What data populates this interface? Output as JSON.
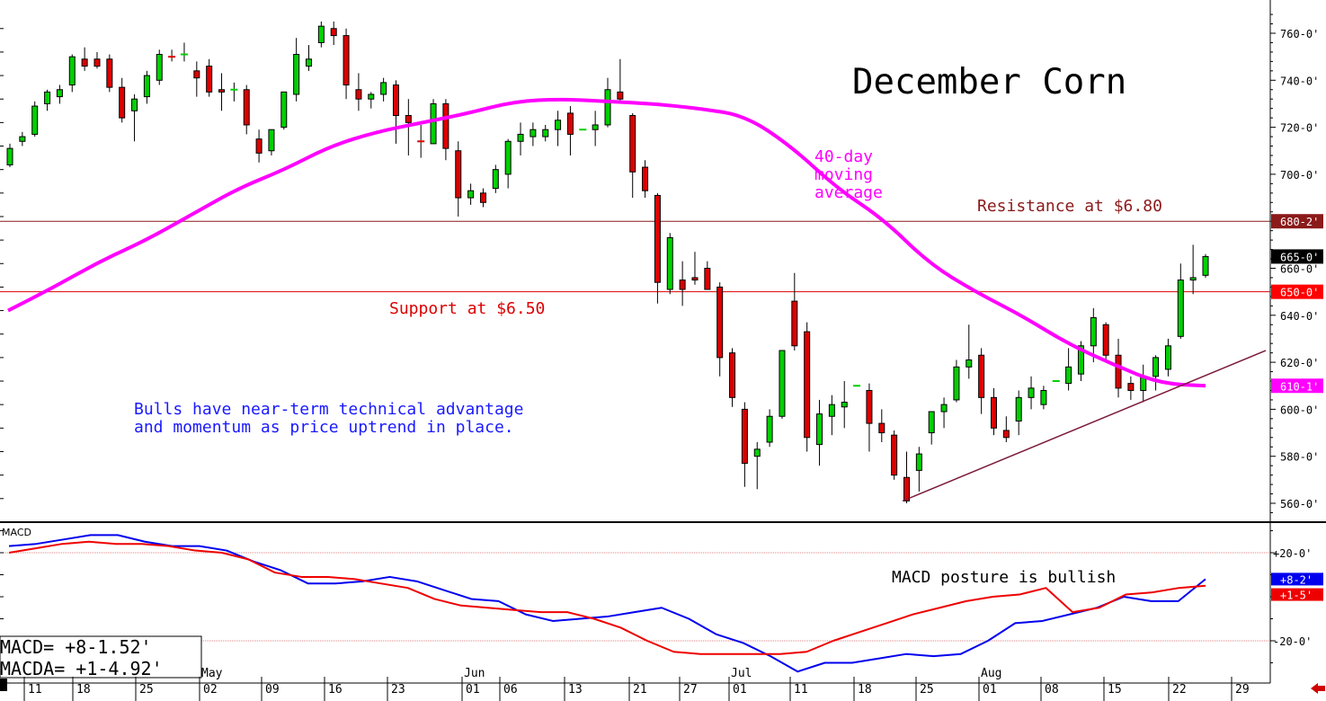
{
  "chart_data": [
    {
      "type": "candlestick",
      "title": "December Corn",
      "y_axis": {
        "range": [
          550,
          768
        ],
        "ticks": [
          "560-0'",
          "580-0'",
          "600-0'",
          "620-0'",
          "640-0'",
          "660-0'",
          "680-0'",
          "700-0'",
          "720-0'",
          "740-0'",
          "760-0'"
        ],
        "tick_values": [
          560,
          580,
          600,
          620,
          640,
          660,
          680,
          700,
          720,
          740,
          760
        ]
      },
      "x_axis": {
        "day_ticks": [
          "11",
          "18",
          "25",
          "02",
          "09",
          "16",
          "23",
          "01",
          "06",
          "13",
          "21",
          "27",
          "01",
          "11",
          "18",
          "25",
          "01",
          "08",
          "15",
          "22",
          "29"
        ],
        "months": [
          "May",
          "Jun",
          "Jul",
          "Aug"
        ]
      },
      "candles": [
        {
          "o": 704,
          "h": 713,
          "l": 703,
          "c": 711
        },
        {
          "o": 714,
          "h": 718,
          "l": 712,
          "c": 716
        },
        {
          "o": 717,
          "h": 731,
          "l": 716,
          "c": 729
        },
        {
          "o": 730,
          "h": 736,
          "l": 727,
          "c": 735
        },
        {
          "o": 733,
          "h": 738,
          "l": 730,
          "c": 736
        },
        {
          "o": 738,
          "h": 751,
          "l": 735,
          "c": 750
        },
        {
          "o": 749,
          "h": 754,
          "l": 744,
          "c": 746
        },
        {
          "o": 749,
          "h": 752,
          "l": 745,
          "c": 746
        },
        {
          "o": 749,
          "h": 751,
          "l": 735,
          "c": 737
        },
        {
          "o": 737,
          "h": 741,
          "l": 722,
          "c": 724
        },
        {
          "o": 727,
          "h": 734,
          "l": 714,
          "c": 732
        },
        {
          "o": 733,
          "h": 744,
          "l": 730,
          "c": 742
        },
        {
          "o": 740,
          "h": 753,
          "l": 738,
          "c": 751
        },
        {
          "o": 750,
          "h": 753,
          "l": 748,
          "c": 750
        },
        {
          "o": 751,
          "h": 756,
          "l": 748,
          "c": 751
        },
        {
          "o": 744,
          "h": 748,
          "l": 733,
          "c": 741
        },
        {
          "o": 746,
          "h": 749,
          "l": 733,
          "c": 735
        },
        {
          "o": 736,
          "h": 743,
          "l": 727,
          "c": 735
        },
        {
          "o": 736,
          "h": 739,
          "l": 731,
          "c": 736
        },
        {
          "o": 736,
          "h": 738,
          "l": 717,
          "c": 721
        },
        {
          "o": 715,
          "h": 719,
          "l": 705,
          "c": 709
        },
        {
          "o": 710,
          "h": 719,
          "l": 708,
          "c": 719
        },
        {
          "o": 720,
          "h": 735,
          "l": 719,
          "c": 735
        },
        {
          "o": 734,
          "h": 758,
          "l": 731,
          "c": 751
        },
        {
          "o": 746,
          "h": 755,
          "l": 744,
          "c": 749
        },
        {
          "o": 756,
          "h": 765,
          "l": 754,
          "c": 763
        },
        {
          "o": 762,
          "h": 765,
          "l": 755,
          "c": 759
        },
        {
          "o": 759,
          "h": 762,
          "l": 732,
          "c": 738
        },
        {
          "o": 736,
          "h": 743,
          "l": 727,
          "c": 732
        },
        {
          "o": 732,
          "h": 735,
          "l": 728,
          "c": 734
        },
        {
          "o": 734,
          "h": 741,
          "l": 731,
          "c": 739
        },
        {
          "o": 738,
          "h": 740,
          "l": 713,
          "c": 725
        },
        {
          "o": 725,
          "h": 732,
          "l": 708,
          "c": 722
        },
        {
          "o": 714,
          "h": 721,
          "l": 707,
          "c": 714
        },
        {
          "o": 713,
          "h": 732,
          "l": 713,
          "c": 730
        },
        {
          "o": 730,
          "h": 732,
          "l": 706,
          "c": 711
        },
        {
          "o": 710,
          "h": 714,
          "l": 682,
          "c": 690
        },
        {
          "o": 690,
          "h": 696,
          "l": 687,
          "c": 693
        },
        {
          "o": 692,
          "h": 694,
          "l": 686,
          "c": 688
        },
        {
          "o": 694,
          "h": 704,
          "l": 692,
          "c": 702
        },
        {
          "o": 700,
          "h": 715,
          "l": 694,
          "c": 714
        },
        {
          "o": 714,
          "h": 722,
          "l": 708,
          "c": 717
        },
        {
          "o": 716,
          "h": 722,
          "l": 712,
          "c": 719
        },
        {
          "o": 716,
          "h": 721,
          "l": 714,
          "c": 719
        },
        {
          "o": 719,
          "h": 727,
          "l": 712,
          "c": 723
        },
        {
          "o": 726,
          "h": 729,
          "l": 708,
          "c": 717
        },
        {
          "o": 719,
          "h": 719,
          "l": 719,
          "c": 719
        },
        {
          "o": 719,
          "h": 727,
          "l": 712,
          "c": 721
        },
        {
          "o": 721,
          "h": 741,
          "l": 720,
          "c": 736
        },
        {
          "o": 735,
          "h": 749,
          "l": 731,
          "c": 732
        },
        {
          "o": 725,
          "h": 726,
          "l": 690,
          "c": 701
        },
        {
          "o": 703,
          "h": 706,
          "l": 690,
          "c": 693
        },
        {
          "o": 691,
          "h": 692,
          "l": 645,
          "c": 654
        },
        {
          "o": 651,
          "h": 675,
          "l": 649,
          "c": 673
        },
        {
          "o": 655,
          "h": 663,
          "l": 644,
          "c": 651
        },
        {
          "o": 656,
          "h": 667,
          "l": 653,
          "c": 655
        },
        {
          "o": 660,
          "h": 663,
          "l": 651,
          "c": 651
        },
        {
          "o": 652,
          "h": 654,
          "l": 614,
          "c": 622
        },
        {
          "o": 624,
          "h": 626,
          "l": 601,
          "c": 605
        },
        {
          "o": 600,
          "h": 603,
          "l": 567,
          "c": 577
        },
        {
          "o": 580,
          "h": 586,
          "l": 566,
          "c": 583
        },
        {
          "o": 586,
          "h": 600,
          "l": 584,
          "c": 597
        },
        {
          "o": 597,
          "h": 625,
          "l": 596,
          "c": 625
        },
        {
          "o": 646,
          "h": 658,
          "l": 625,
          "c": 627
        },
        {
          "o": 633,
          "h": 637,
          "l": 582,
          "c": 588
        },
        {
          "o": 585,
          "h": 604,
          "l": 576,
          "c": 598
        },
        {
          "o": 597,
          "h": 606,
          "l": 589,
          "c": 602
        },
        {
          "o": 601,
          "h": 612,
          "l": 592,
          "c": 603
        },
        {
          "o": 610,
          "h": 610,
          "l": 610,
          "c": 610
        },
        {
          "o": 608,
          "h": 611,
          "l": 582,
          "c": 594
        },
        {
          "o": 594,
          "h": 600,
          "l": 586,
          "c": 590
        },
        {
          "o": 589,
          "h": 591,
          "l": 570,
          "c": 572
        },
        {
          "o": 571,
          "h": 582,
          "l": 560,
          "c": 561
        },
        {
          "o": 574,
          "h": 584,
          "l": 565,
          "c": 581
        },
        {
          "o": 590,
          "h": 599,
          "l": 585,
          "c": 599
        },
        {
          "o": 599,
          "h": 605,
          "l": 592,
          "c": 602
        },
        {
          "o": 604,
          "h": 621,
          "l": 603,
          "c": 618
        },
        {
          "o": 618,
          "h": 636,
          "l": 613,
          "c": 621
        },
        {
          "o": 623,
          "h": 626,
          "l": 598,
          "c": 605
        },
        {
          "o": 605,
          "h": 609,
          "l": 589,
          "c": 592
        },
        {
          "o": 591,
          "h": 597,
          "l": 586,
          "c": 588
        },
        {
          "o": 595,
          "h": 608,
          "l": 589,
          "c": 605
        },
        {
          "o": 605,
          "h": 614,
          "l": 600,
          "c": 609
        },
        {
          "o": 602,
          "h": 610,
          "l": 600,
          "c": 608
        },
        {
          "o": 612,
          "h": 612,
          "l": 612,
          "c": 612
        },
        {
          "o": 611,
          "h": 626,
          "l": 608,
          "c": 618
        },
        {
          "o": 615,
          "h": 629,
          "l": 612,
          "c": 627
        },
        {
          "o": 627,
          "h": 643,
          "l": 620,
          "c": 639
        },
        {
          "o": 636,
          "h": 637,
          "l": 620,
          "c": 623
        },
        {
          "o": 623,
          "h": 630,
          "l": 605,
          "c": 609
        },
        {
          "o": 611,
          "h": 614,
          "l": 604,
          "c": 608
        },
        {
          "o": 608,
          "h": 619,
          "l": 603,
          "c": 614
        },
        {
          "o": 614,
          "h": 623,
          "l": 608,
          "c": 622
        },
        {
          "o": 617,
          "h": 630,
          "l": 614,
          "c": 627
        },
        {
          "o": 631,
          "h": 662,
          "l": 630,
          "c": 655
        },
        {
          "o": 655,
          "h": 670,
          "l": 649,
          "c": 656
        },
        {
          "o": 657,
          "h": 666,
          "l": 656,
          "c": 665
        }
      ],
      "moving_average": {
        "label": "40-day moving average",
        "values": [
          642,
          652,
          663,
          672,
          683,
          694,
          702,
          712,
          718,
          722,
          726,
          731,
          732,
          731,
          730,
          728,
          725,
          712,
          694,
          681,
          662,
          650,
          640,
          628,
          619,
          611,
          610
        ]
      },
      "levels": [
        {
          "name": "Resistance at $6.80",
          "value": 680,
          "tag": "680-2'"
        },
        {
          "name": "Support at $6.50",
          "value": 650,
          "tag": "650-0'"
        }
      ],
      "trendline": {
        "from": 561,
        "to": 625
      },
      "price_tags": [
        {
          "text": "680-2'",
          "value": 680,
          "bg": "#8b1a1a"
        },
        {
          "text": "665-0'",
          "value": 665,
          "bg": "#000000"
        },
        {
          "text": "650-0'",
          "value": 650,
          "bg": "#ff0000"
        },
        {
          "text": "610-1'",
          "value": 610,
          "bg": "#ff00ff"
        }
      ],
      "annotations": {
        "ma_label": [
          "40-day",
          "moving",
          "average"
        ],
        "resistance": "Resistance at $6.80",
        "support": "Support at $6.50",
        "commentary": [
          "Bulls have near-term technical advantage",
          "and momentum as price uptrend in place."
        ]
      },
      "colors": {
        "up": "#00d000",
        "down": "#dd0000",
        "ma": "#ff00ff",
        "resistance": "#8b1a1a",
        "support": "#dd0000",
        "trend": "#7b1a3a",
        "commentary": "#1a1aff"
      }
    },
    {
      "type": "line",
      "title": "MACD",
      "y_axis": {
        "ticks": [
          "+20-0'",
          "-20-0'"
        ],
        "tick_values": [
          20,
          -20
        ],
        "range": [
          -33,
          35
        ]
      },
      "series": [
        {
          "name": "MACD",
          "color": "#0000ee",
          "values": [
            23,
            24,
            26,
            28,
            28,
            25,
            23,
            23,
            21,
            16,
            12,
            6,
            6,
            7,
            9,
            7,
            3,
            -1,
            -2,
            -8,
            -11,
            -10,
            -9,
            -7,
            -5,
            -10,
            -17,
            -21,
            -27,
            -34,
            -30,
            -30,
            -28,
            -26,
            -27,
            -26,
            -20,
            -12,
            -11,
            -8,
            -5,
            0,
            -2,
            -2,
            8
          ]
        },
        {
          "name": "MACDA",
          "color": "#ee0000",
          "values": [
            20,
            22,
            24,
            25,
            24,
            24,
            23,
            21,
            20,
            17,
            11,
            9,
            9,
            8,
            6,
            4,
            -1,
            -4,
            -5,
            -6,
            -7,
            -7,
            -10,
            -14,
            -20,
            -25,
            -26,
            -26,
            -26,
            -26,
            -25,
            -20,
            -16,
            -12,
            -8,
            -5,
            -2,
            0,
            1,
            4,
            -7,
            -5,
            1,
            2,
            4,
            5
          ]
        }
      ],
      "readout": {
        "macd": "MACD=  +8-1.52'",
        "macda": "MACDA= +1-4.92'"
      },
      "price_tags": [
        {
          "text": "+8-2'",
          "value": 8,
          "bg": "#0000ee"
        },
        {
          "text": "+1-5'",
          "value": 1,
          "bg": "#ee0000"
        }
      ],
      "annotation": "MACD posture is bullish"
    }
  ]
}
